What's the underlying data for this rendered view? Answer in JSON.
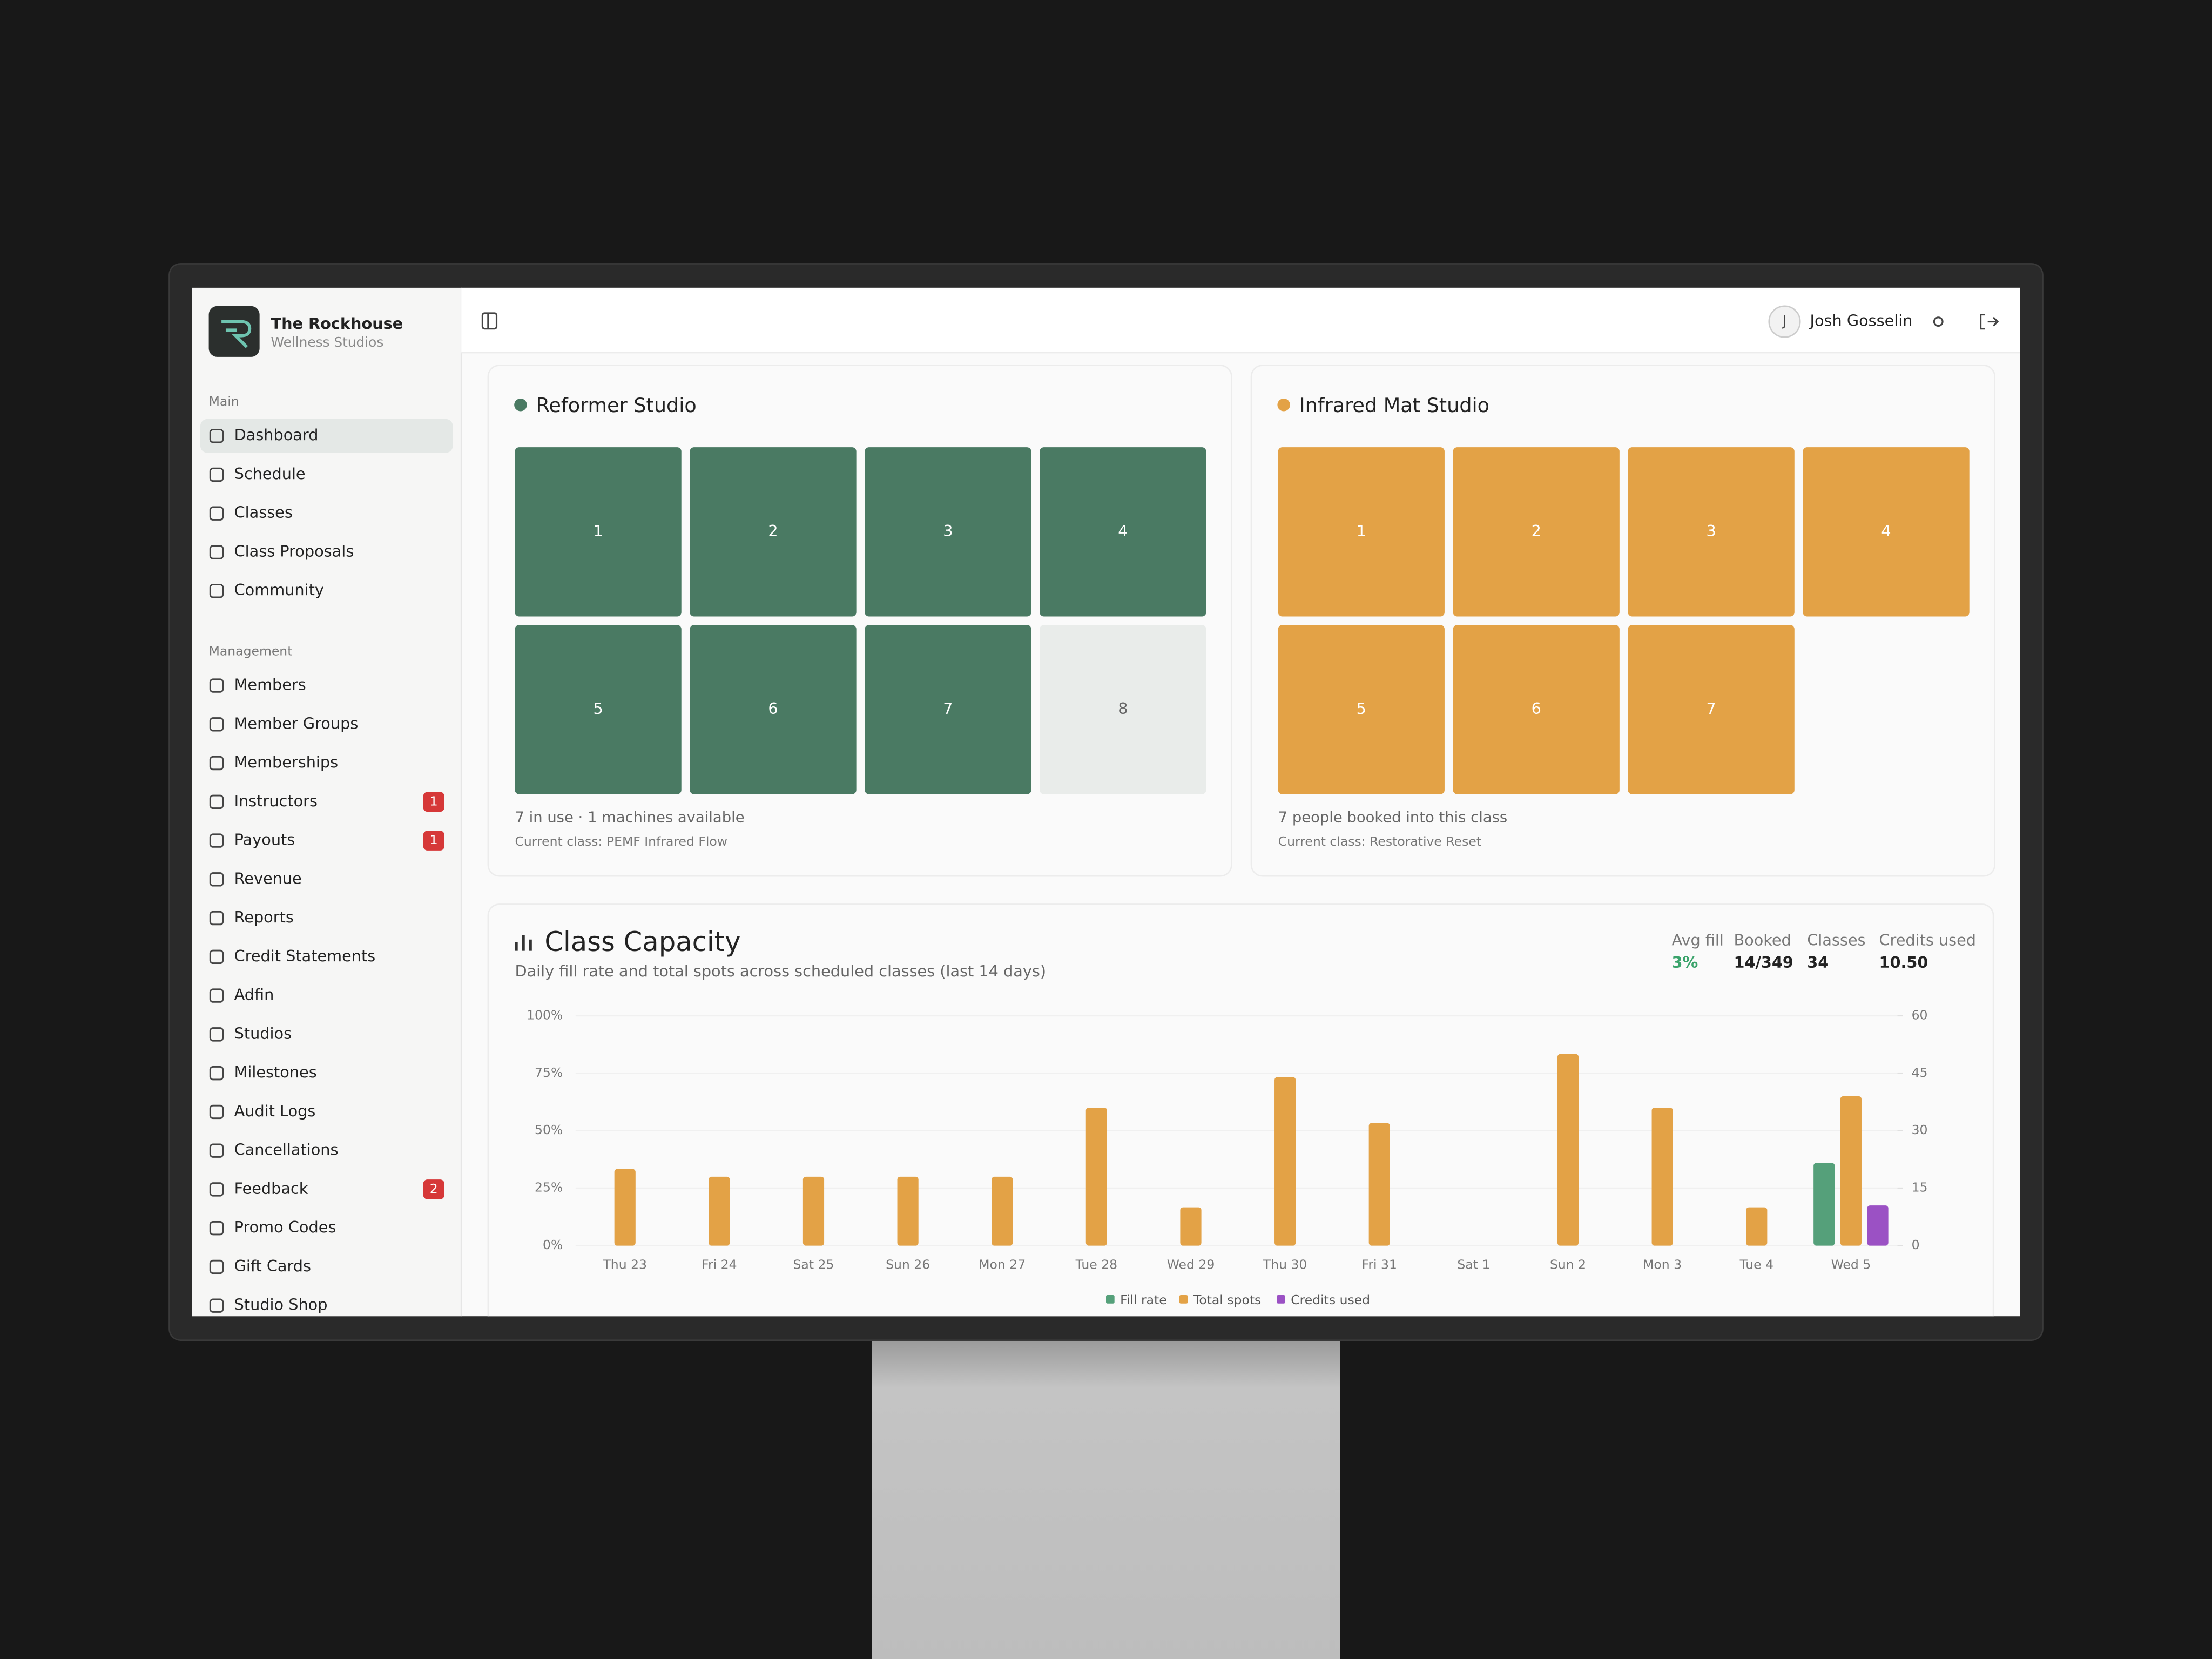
{
  "sidebar": {
    "brand": {
      "name": "The Rockhouse",
      "tagline": "Wellness Studios"
    },
    "sections": [
      {
        "label": "Main",
        "items": [
          {
            "label": "Dashboard",
            "active": true
          },
          {
            "label": "Schedule"
          },
          {
            "label": "Classes"
          },
          {
            "label": "Class Proposals"
          },
          {
            "label": "Community"
          }
        ]
      },
      {
        "label": "Management",
        "items": [
          {
            "label": "Members"
          },
          {
            "label": "Member Groups"
          },
          {
            "label": "Memberships"
          },
          {
            "label": "Instructors",
            "badge": 1
          },
          {
            "label": "Payouts",
            "badge": 1
          },
          {
            "label": "Revenue"
          },
          {
            "label": "Reports"
          },
          {
            "label": "Credit Statements"
          },
          {
            "label": "Adfin"
          },
          {
            "label": "Studios"
          },
          {
            "label": "Milestones"
          },
          {
            "label": "Audit Logs"
          },
          {
            "label": "Cancellations"
          },
          {
            "label": "Feedback",
            "badge": 2
          },
          {
            "label": "Promo Codes"
          },
          {
            "label": "Gift Cards"
          },
          {
            "label": "Studio Shop"
          }
        ]
      }
    ]
  },
  "header": {
    "avatar": "J",
    "user": "Josh Gosselin"
  },
  "studios": [
    {
      "name": "Reformer Studio",
      "color": "#4a7a63",
      "tiles": [
        {
          "number": 1,
          "color": "#4a7a63"
        },
        {
          "number": 2,
          "color": "#4a7a63"
        },
        {
          "number": 3,
          "color": "#4a7a63"
        },
        {
          "number": 4,
          "color": "#4a7a63"
        },
        {
          "number": 5,
          "color": "#4a7a63"
        },
        {
          "number": 6,
          "color": "#4a7a63"
        },
        {
          "number": 7,
          "color": "#4a7a63"
        },
        {
          "number": 8,
          "color": "#e9ecea"
        }
      ],
      "status": "7 in use · 1 machines available",
      "current": "Current class: PEMF Infrared Flow"
    },
    {
      "name": "Infrared Mat Studio",
      "color": "#e3a246",
      "tiles": [
        {
          "number": 1,
          "color": "#e3a246"
        },
        {
          "number": 2,
          "color": "#e3a246"
        },
        {
          "number": 3,
          "color": "#e3a246"
        },
        {
          "number": 4,
          "color": "#e3a246"
        },
        {
          "number": 5,
          "color": "#e3a246"
        },
        {
          "number": 6,
          "color": "#e3a246"
        },
        {
          "number": 7,
          "color": "#e3a246"
        }
      ],
      "status": "7 people booked into this class",
      "current": "Current class: Restorative Reset"
    }
  ],
  "chart_data": {
    "type": "bar",
    "title": "Class Capacity",
    "subtitle": "Daily fill rate and total spots across scheduled classes (last 14 days)",
    "stats": [
      {
        "label": "Avg fill",
        "value": "3%",
        "color": "#3aa36b"
      },
      {
        "label": "Booked",
        "value": "14/349"
      },
      {
        "label": "Classes",
        "value": "34"
      },
      {
        "label": "Credits used",
        "value": "10.50"
      }
    ],
    "categories": [
      "Thu 23",
      "Fri 24",
      "Sat 25",
      "Sun 26",
      "Mon 27",
      "Tue 28",
      "Wed 29",
      "Thu 30",
      "Fri 31",
      "Sat 1",
      "Sun 2",
      "Mon 3",
      "Tue 4",
      "Wed 5"
    ],
    "series": [
      {
        "name": "Fill rate",
        "color": "#55a07a",
        "values": [
          0,
          0,
          0,
          0,
          0,
          0,
          0,
          0,
          0,
          0,
          0,
          0,
          0,
          36
        ]
      },
      {
        "name": "Total spots",
        "color": "#e3a246",
        "axis": "y2",
        "values": [
          20,
          18,
          18,
          18,
          18,
          36,
          10,
          44,
          32,
          0,
          50,
          36,
          10,
          39
        ]
      },
      {
        "name": "Credits used",
        "color": "#9b51c4",
        "axis": "y2",
        "values": [
          0,
          0,
          0,
          0,
          0,
          0,
          0,
          0,
          0,
          0,
          0,
          0,
          0,
          10.5
        ]
      }
    ],
    "ylim": [
      0,
      100
    ],
    "yticks": [
      {
        "value": 0,
        "label": "0%"
      },
      {
        "value": 25,
        "label": "25%"
      },
      {
        "value": 50,
        "label": "50%"
      },
      {
        "value": 75,
        "label": "75%"
      },
      {
        "value": 100,
        "label": "100%"
      }
    ],
    "y2lim": [
      0,
      60
    ],
    "y2ticks": [
      0,
      15,
      30,
      45,
      60
    ],
    "grid": true
  }
}
